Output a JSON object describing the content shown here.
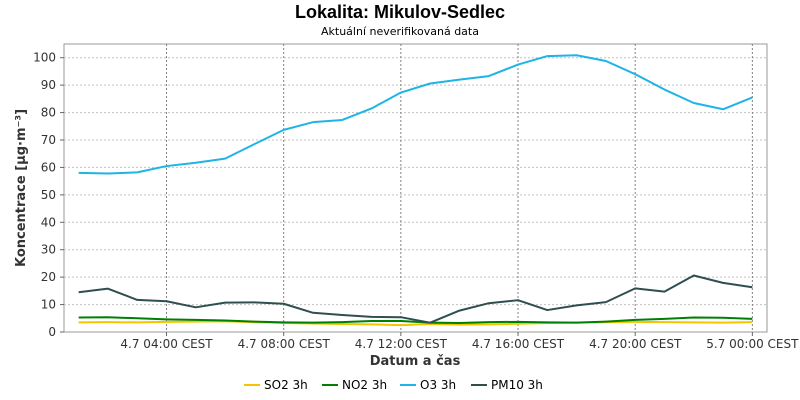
{
  "chart_data": {
    "type": "line",
    "title": "Lokalita: Mikulov-Sedlec",
    "subtitle": "Aktuální neverifikovaná data",
    "xlabel": "Datum a čas",
    "ylabel": "Koncentrace [µg·m⁻³]",
    "ylim": [
      0,
      105
    ],
    "yticks": [
      0,
      10,
      20,
      30,
      40,
      50,
      60,
      70,
      80,
      90,
      100
    ],
    "xlim": [
      0.5,
      24.5
    ],
    "xticks": [
      {
        "x": 4,
        "label": "4.7 04:00 CEST"
      },
      {
        "x": 8,
        "label": "4.7 08:00 CEST"
      },
      {
        "x": 12,
        "label": "4.7 12:00 CEST"
      },
      {
        "x": 16,
        "label": "4.7 16:00 CEST"
      },
      {
        "x": 20,
        "label": "4.7 20:00 CEST"
      },
      {
        "x": 24,
        "label": "5.7 00:00 CEST"
      }
    ],
    "x": [
      1,
      2,
      3,
      4,
      5,
      6,
      7,
      8,
      9,
      10,
      11,
      12,
      13,
      14,
      15,
      16,
      17,
      18,
      19,
      20,
      21,
      22,
      23,
      24
    ],
    "grid": true,
    "legend_position": "bottom",
    "series": [
      {
        "name": "SO2 3h",
        "color": "#f5c400",
        "values": [
          3.5,
          3.6,
          3.5,
          3.7,
          3.8,
          3.9,
          3.6,
          3.3,
          3.1,
          2.9,
          2.8,
          2.5,
          2.9,
          2.7,
          2.8,
          3.0,
          3.3,
          3.4,
          3.6,
          3.7,
          3.6,
          3.5,
          3.4,
          3.6
        ]
      },
      {
        "name": "NO2 3h",
        "color": "#008000",
        "values": [
          5.3,
          5.4,
          5.0,
          4.6,
          4.4,
          4.2,
          3.8,
          3.5,
          3.4,
          3.6,
          4.0,
          4.0,
          3.4,
          3.3,
          3.6,
          3.7,
          3.5,
          3.4,
          3.8,
          4.4,
          4.8,
          5.3,
          5.2,
          4.8
        ]
      },
      {
        "name": "O3 3h",
        "color": "#1eb4e6",
        "values": [
          58,
          57.8,
          58.2,
          60.5,
          61.7,
          63.2,
          68.5,
          73.7,
          76.5,
          77.3,
          81.5,
          87.3,
          90.6,
          92,
          93.3,
          97.5,
          100.6,
          100.9,
          98.8,
          94,
          88.4,
          83.5,
          81.2,
          85.5
        ]
      },
      {
        "name": "PM10 3h",
        "color": "#2f4f4f",
        "values": [
          14.5,
          15.8,
          11.7,
          11.2,
          9,
          10.7,
          10.8,
          10.3,
          7,
          6.2,
          5.5,
          5.4,
          3.4,
          7.8,
          10.5,
          11.6,
          8,
          9.7,
          10.9,
          15.9,
          14.7,
          20.6,
          17.9,
          16.3
        ]
      }
    ]
  }
}
